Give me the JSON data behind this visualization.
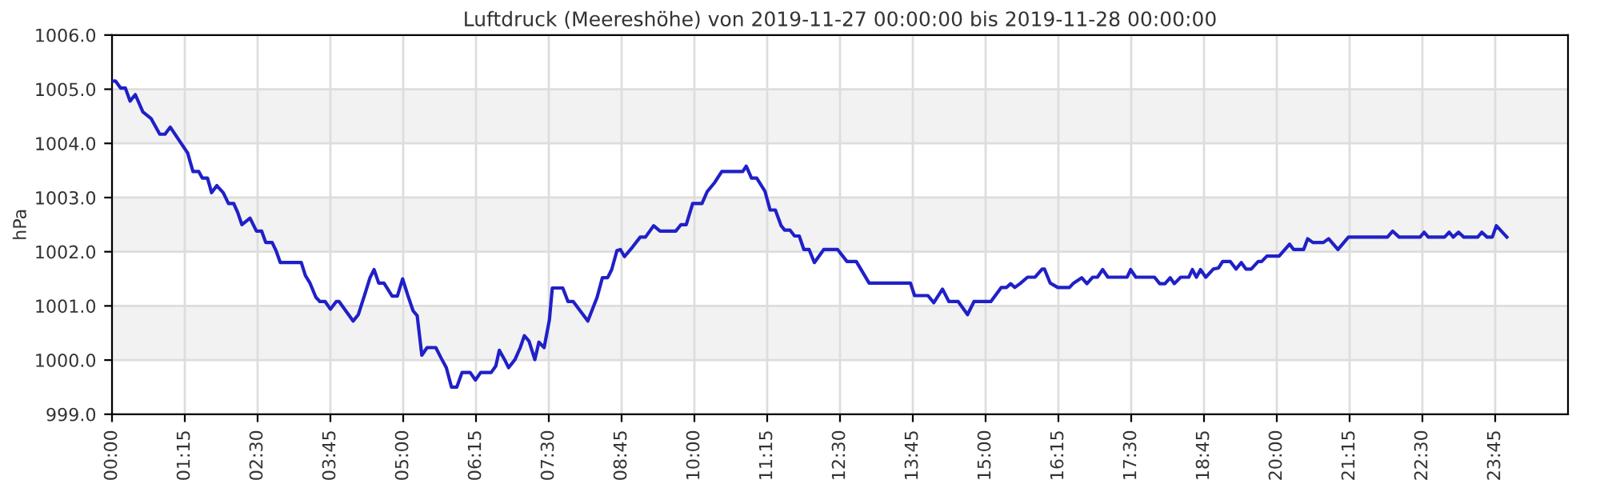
{
  "chart_data": {
    "type": "line",
    "title": "Luftdruck (Meereshöhe) von 2019-11-27 00:00:00 bis 2019-11-28 00:00:00",
    "ylabel": "hPa",
    "xlim": [
      0,
      25
    ],
    "ylim": [
      999,
      1006
    ],
    "xticks": [
      {
        "value": 0,
        "label": "00:00"
      },
      {
        "value": 1.25,
        "label": "01:15"
      },
      {
        "value": 2.5,
        "label": "02:30"
      },
      {
        "value": 3.75,
        "label": "03:45"
      },
      {
        "value": 5,
        "label": "05:00"
      },
      {
        "value": 6.25,
        "label": "06:15"
      },
      {
        "value": 7.5,
        "label": "07:30"
      },
      {
        "value": 8.75,
        "label": "08:45"
      },
      {
        "value": 10,
        "label": "10:00"
      },
      {
        "value": 11.25,
        "label": "11:15"
      },
      {
        "value": 12.5,
        "label": "12:30"
      },
      {
        "value": 13.75,
        "label": "13:45"
      },
      {
        "value": 15,
        "label": "15:00"
      },
      {
        "value": 16.25,
        "label": "16:15"
      },
      {
        "value": 17.5,
        "label": "17:30"
      },
      {
        "value": 18.75,
        "label": "18:45"
      },
      {
        "value": 20,
        "label": "20:00"
      },
      {
        "value": 21.25,
        "label": "21:15"
      },
      {
        "value": 22.5,
        "label": "22:30"
      },
      {
        "value": 23.75,
        "label": "23:45"
      }
    ],
    "yticks": [
      {
        "value": 999,
        "label": "999.0"
      },
      {
        "value": 1000,
        "label": "1000.0"
      },
      {
        "value": 1001,
        "label": "1001.0"
      },
      {
        "value": 1002,
        "label": "1002.0"
      },
      {
        "value": 1003,
        "label": "1003.0"
      },
      {
        "value": 1004,
        "label": "1004.0"
      },
      {
        "value": 1005,
        "label": "1005.0"
      },
      {
        "value": 1006,
        "label": "1006.0"
      }
    ],
    "grid": true,
    "legend": false,
    "marker": "none",
    "line_style": "solid",
    "bands": [
      {
        "axis": "y",
        "from": 1000,
        "to": 1001,
        "color": "#f2f2f2"
      },
      {
        "axis": "y",
        "from": 1002,
        "to": 1003,
        "color": "#f2f2f2"
      },
      {
        "axis": "y",
        "from": 1004,
        "to": 1005,
        "color": "#f2f2f2"
      }
    ],
    "series": [
      {
        "color": "#2020c8",
        "x": [
          0,
          0.06,
          0.15,
          0.23,
          0.31,
          0.4,
          0.53,
          0.67,
          0.82,
          0.91,
          1.0,
          1.3,
          1.39,
          1.49,
          1.55,
          1.64,
          1.71,
          1.8,
          1.91,
          2.0,
          2.09,
          2.16,
          2.23,
          2.37,
          2.48,
          2.57,
          2.64,
          2.75,
          2.82,
          2.89,
          3.25,
          3.32,
          3.4,
          3.5,
          3.57,
          3.66,
          3.75,
          3.85,
          3.9,
          4.14,
          4.23,
          4.34,
          4.43,
          4.5,
          4.58,
          4.67,
          4.81,
          4.9,
          4.99,
          5.09,
          5.17,
          5.24,
          5.32,
          5.41,
          5.56,
          5.65,
          5.74,
          5.83,
          5.92,
          6.01,
          6.15,
          6.24,
          6.33,
          6.51,
          6.59,
          6.65,
          6.74,
          6.81,
          6.92,
          7.01,
          7.08,
          7.16,
          7.26,
          7.33,
          7.42,
          7.51,
          7.56,
          7.74,
          7.83,
          7.92,
          8.17,
          8.33,
          8.42,
          8.51,
          8.58,
          8.67,
          8.73,
          8.8,
          8.94,
          9.07,
          9.16,
          9.3,
          9.41,
          9.68,
          9.77,
          9.86,
          9.97,
          10.13,
          10.22,
          10.35,
          10.47,
          10.83,
          10.89,
          10.98,
          11.07,
          11.21,
          11.3,
          11.39,
          11.49,
          11.55,
          11.64,
          11.72,
          11.8,
          11.88,
          11.97,
          12.06,
          12.22,
          12.46,
          12.62,
          12.78,
          13.0,
          13.71,
          13.78,
          14.01,
          14.11,
          14.26,
          14.37,
          14.53,
          14.69,
          14.8,
          15.09,
          15.27,
          15.36,
          15.43,
          15.5,
          15.59,
          15.72,
          15.85,
          15.97,
          16.01,
          16.11,
          16.24,
          16.44,
          16.51,
          16.65,
          16.74,
          16.84,
          16.92,
          17.01,
          17.1,
          17.43,
          17.49,
          17.58,
          17.9,
          17.99,
          18.08,
          18.17,
          18.24,
          18.35,
          18.49,
          18.55,
          18.62,
          18.69,
          18.78,
          18.91,
          19.0,
          19.07,
          19.2,
          19.3,
          19.39,
          19.47,
          19.56,
          19.68,
          19.74,
          19.83,
          20.04,
          20.22,
          20.29,
          20.46,
          20.53,
          20.62,
          20.8,
          20.89,
          21.05,
          21.23,
          21.9,
          21.99,
          22.1,
          22.46,
          22.53,
          22.6,
          22.88,
          22.96,
          23.03,
          23.12,
          23.21,
          23.45,
          23.52,
          23.61,
          23.7,
          23.77,
          23.95
        ],
        "values": [
          1005.15,
          1005.15,
          1005.02,
          1005.02,
          1004.78,
          1004.9,
          1004.58,
          1004.46,
          1004.17,
          1004.17,
          1004.3,
          1003.82,
          1003.48,
          1003.48,
          1003.36,
          1003.36,
          1003.09,
          1003.22,
          1003.09,
          1002.89,
          1002.89,
          1002.72,
          1002.5,
          1002.62,
          1002.38,
          1002.38,
          1002.17,
          1002.17,
          1002.01,
          1001.8,
          1001.8,
          1001.56,
          1001.42,
          1001.16,
          1001.08,
          1001.08,
          1000.94,
          1001.08,
          1001.08,
          1000.72,
          1000.84,
          1001.21,
          1001.52,
          1001.67,
          1001.42,
          1001.42,
          1001.18,
          1001.18,
          1001.5,
          1001.16,
          1000.91,
          1000.82,
          1000.09,
          1000.23,
          1000.23,
          1000.04,
          999.86,
          999.5,
          999.5,
          999.77,
          999.77,
          999.63,
          999.77,
          999.77,
          999.89,
          1000.18,
          1000.01,
          999.86,
          1000.01,
          1000.23,
          1000.45,
          1000.35,
          1000.01,
          1000.33,
          1000.23,
          1000.74,
          1001.33,
          1001.33,
          1001.08,
          1001.08,
          1000.72,
          1001.16,
          1001.52,
          1001.52,
          1001.67,
          1002.02,
          1002.04,
          1001.91,
          1002.09,
          1002.27,
          1002.27,
          1002.48,
          1002.38,
          1002.38,
          1002.5,
          1002.5,
          1002.89,
          1002.89,
          1003.11,
          1003.28,
          1003.48,
          1003.48,
          1003.58,
          1003.36,
          1003.36,
          1003.12,
          1002.77,
          1002.77,
          1002.48,
          1002.4,
          1002.4,
          1002.29,
          1002.29,
          1002.04,
          1002.04,
          1001.8,
          1002.04,
          1002.04,
          1001.82,
          1001.82,
          1001.42,
          1001.42,
          1001.19,
          1001.19,
          1001.06,
          1001.31,
          1001.08,
          1001.08,
          1000.84,
          1001.08,
          1001.08,
          1001.34,
          1001.34,
          1001.41,
          1001.34,
          1001.41,
          1001.53,
          1001.53,
          1001.68,
          1001.68,
          1001.42,
          1001.34,
          1001.34,
          1001.42,
          1001.52,
          1001.41,
          1001.53,
          1001.53,
          1001.67,
          1001.53,
          1001.53,
          1001.67,
          1001.53,
          1001.53,
          1001.41,
          1001.41,
          1001.52,
          1001.41,
          1001.53,
          1001.53,
          1001.67,
          1001.53,
          1001.67,
          1001.53,
          1001.68,
          1001.7,
          1001.82,
          1001.82,
          1001.68,
          1001.8,
          1001.68,
          1001.68,
          1001.82,
          1001.82,
          1001.92,
          1001.92,
          1002.14,
          1002.04,
          1002.04,
          1002.24,
          1002.17,
          1002.17,
          1002.24,
          1002.04,
          1002.27,
          1002.27,
          1002.38,
          1002.27,
          1002.27,
          1002.36,
          1002.27,
          1002.27,
          1002.36,
          1002.27,
          1002.36,
          1002.27,
          1002.27,
          1002.36,
          1002.27,
          1002.27,
          1002.48,
          1002.27
        ]
      }
    ]
  }
}
